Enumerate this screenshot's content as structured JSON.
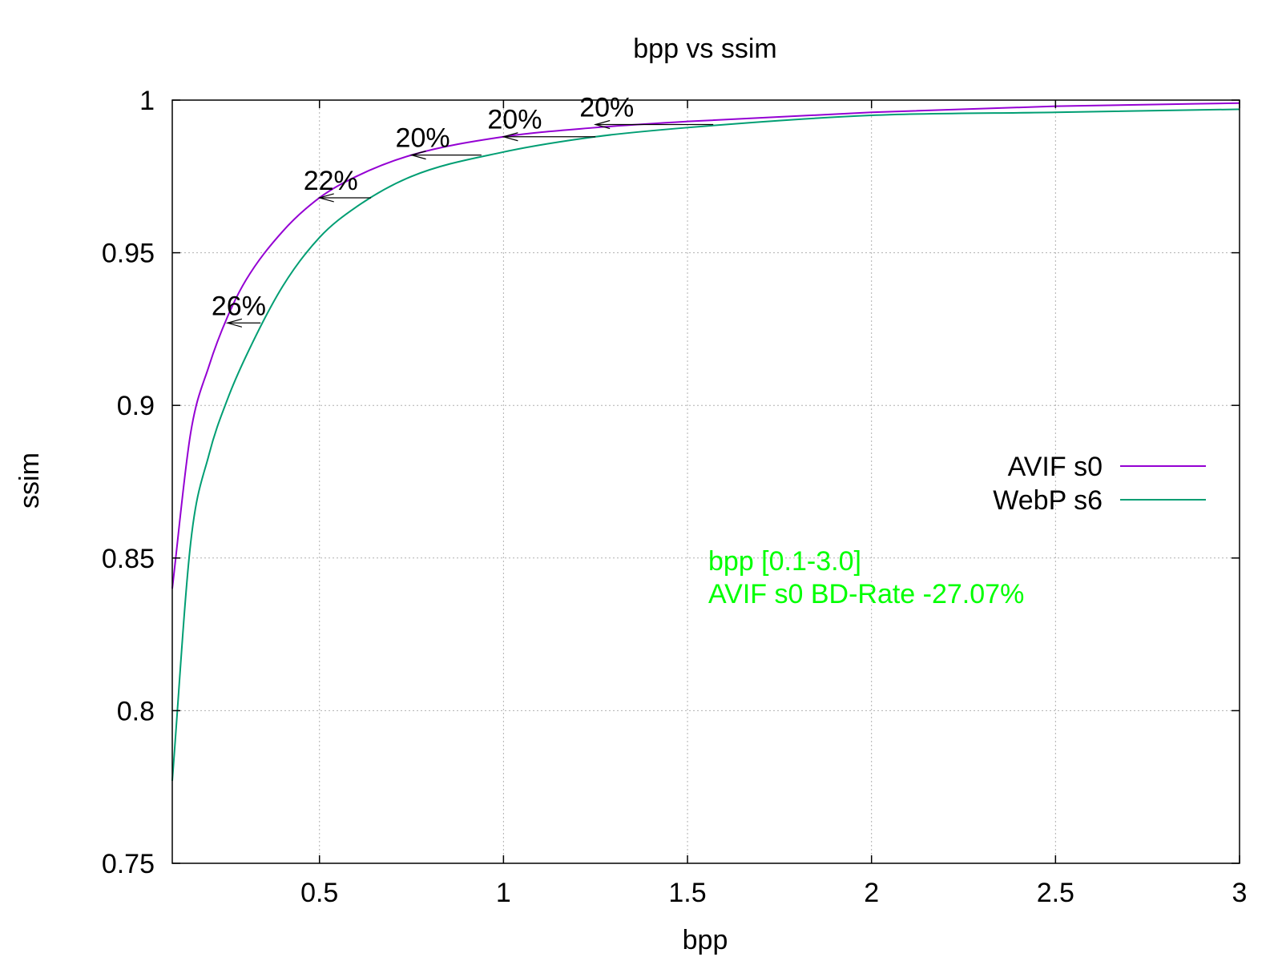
{
  "chart_data": {
    "type": "line",
    "title": "bpp vs ssim",
    "xlabel": "bpp",
    "ylabel": "ssim",
    "xlim": [
      0.1,
      3.0
    ],
    "ylim": [
      0.75,
      1.0
    ],
    "xticks": [
      0.5,
      1,
      1.5,
      2,
      2.5,
      3
    ],
    "xtick_labels": [
      "0.5",
      "1",
      "1.5",
      "2",
      "2.5",
      "3"
    ],
    "yticks": [
      0.75,
      0.8,
      0.85,
      0.9,
      0.95,
      1.0
    ],
    "ytick_labels": [
      "0.75",
      "0.8",
      "0.85",
      "0.9",
      "0.95",
      "1"
    ],
    "grid": true,
    "legend_position": "right",
    "series": [
      {
        "name": "AVIF s0",
        "color": "#9400d3",
        "x": [
          0.1,
          0.15,
          0.2,
          0.25,
          0.3,
          0.4,
          0.5,
          0.6,
          0.75,
          1.0,
          1.25,
          1.5,
          2.0,
          2.5,
          3.0
        ],
        "y": [
          0.84,
          0.891,
          0.913,
          0.929,
          0.941,
          0.957,
          0.968,
          0.975,
          0.982,
          0.988,
          0.991,
          0.993,
          0.996,
          0.998,
          0.999
        ]
      },
      {
        "name": "WebP s6",
        "color": "#009e73",
        "x": [
          0.1,
          0.15,
          0.2,
          0.25,
          0.3,
          0.4,
          0.5,
          0.6,
          0.75,
          1.0,
          1.25,
          1.5,
          2.0,
          2.5,
          3.0
        ],
        "y": [
          0.777,
          0.855,
          0.884,
          0.902,
          0.916,
          0.939,
          0.955,
          0.965,
          0.975,
          0.983,
          0.988,
          0.991,
          0.995,
          0.996,
          0.997
        ]
      }
    ],
    "annotations": [
      {
        "label": "26%",
        "y": 0.927,
        "x_from": 0.34,
        "x_to": 0.25
      },
      {
        "label": "22%",
        "y": 0.968,
        "x_from": 0.64,
        "x_to": 0.5
      },
      {
        "label": "20%",
        "y": 0.982,
        "x_from": 0.94,
        "x_to": 0.75
      },
      {
        "label": "20%",
        "y": 0.988,
        "x_from": 1.25,
        "x_to": 1.0
      },
      {
        "label": "20%",
        "y": 0.992,
        "x_from": 1.57,
        "x_to": 1.25
      }
    ],
    "info_lines": [
      "bpp [0.1-3.0]",
      "AVIF s0 BD-Rate -27.07%"
    ],
    "info_color": "#00ff00"
  }
}
